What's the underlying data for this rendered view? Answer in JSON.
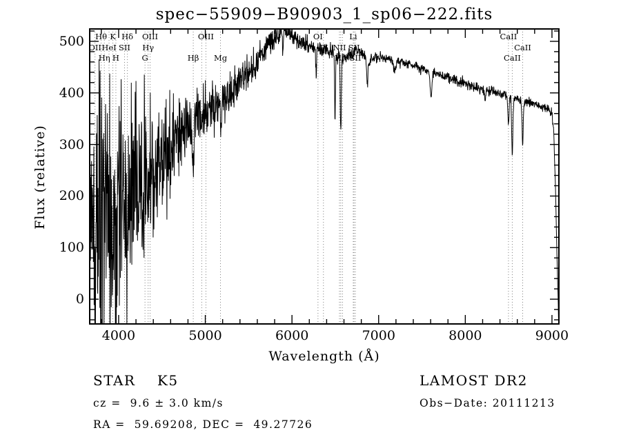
{
  "title": "spec−55909−B90903_1_sp06−222.fits",
  "annotations": {
    "object_class": "STAR    K5",
    "survey": "LAMOST DR2",
    "cz": "cz =  9.6 ± 3.0 km/s",
    "obs_date": "Obs−Date: 20111213",
    "ra_dec": "RA =  59.69208, DEC =  49.27726"
  },
  "chart_data": {
    "type": "line",
    "title": "spec−55909−B90903_1_sp06−222.fits",
    "xlabel": "Wavelength (Å)",
    "ylabel": "Flux (relative)",
    "xlim": [
      3666,
      9080
    ],
    "ylim": [
      -48,
      524
    ],
    "x_ticks": [
      4000,
      5000,
      6000,
      7000,
      8000,
      9000
    ],
    "y_ticks": [
      0,
      100,
      200,
      300,
      400,
      500
    ],
    "x_minor_step": 200,
    "y_minor_step": 20,
    "grid": false,
    "legend": "none",
    "colors": {
      "trace": "#000000",
      "frame": "#000000",
      "line_markers": "#7f7f7f",
      "background": "#ffffff"
    },
    "spectral_lines": [
      {
        "label": "OII",
        "wavelength": 3727,
        "row": 1
      },
      {
        "label": "Hθ",
        "wavelength": 3798,
        "row": 0
      },
      {
        "label": "Hη",
        "wavelength": 3835,
        "row": 2
      },
      {
        "label": "HeI",
        "wavelength": 3889,
        "row": 1
      },
      {
        "label": "K",
        "wavelength": 3933,
        "row": 0
      },
      {
        "label": "H",
        "wavelength": 3968,
        "row": 2
      },
      {
        "label": "SII",
        "wavelength": 4068,
        "row": 1
      },
      {
        "label": "Hδ",
        "wavelength": 4101,
        "row": 0
      },
      {
        "label": "G",
        "wavelength": 4304,
        "row": 2
      },
      {
        "label": "Hγ",
        "wavelength": 4340,
        "row": 1
      },
      {
        "label": "OIII",
        "wavelength": 4363,
        "row": 0
      },
      {
        "label": "Hβ",
        "wavelength": 4861,
        "row": 2
      },
      {
        "label": "",
        "wavelength": 4959,
        "row": null
      },
      {
        "label": "OIII",
        "wavelength": 5007,
        "row": 0
      },
      {
        "label": "Mg",
        "wavelength": 5175,
        "row": 2
      },
      {
        "label": "OI",
        "wavelength": 6300,
        "row": 0
      },
      {
        "label": "OI",
        "wavelength": 6363,
        "row": 1
      },
      {
        "label": "NII",
        "wavelength": 6548,
        "row": 1
      },
      {
        "label": "Hα",
        "wavelength": 6563,
        "row": 2
      },
      {
        "label": "",
        "wavelength": 6583,
        "row": null
      },
      {
        "label": "Li",
        "wavelength": 6707,
        "row": 0
      },
      {
        "label": "SII",
        "wavelength": 6716,
        "row": 1
      },
      {
        "label": "SII",
        "wavelength": 6731,
        "row": 2
      },
      {
        "label": "CaII",
        "wavelength": 8498,
        "row": 0
      },
      {
        "label": "CaII",
        "wavelength": 8542,
        "row": 2
      },
      {
        "label": "CaII",
        "wavelength": 8662,
        "row": 1
      }
    ],
    "series": [
      {
        "name": "spectrum",
        "continuum_points_wl_flux": [
          [
            3666,
            140
          ],
          [
            3700,
            152
          ],
          [
            3750,
            160
          ],
          [
            3800,
            166
          ],
          [
            3850,
            172
          ],
          [
            3900,
            180
          ],
          [
            3950,
            190
          ],
          [
            4000,
            200
          ],
          [
            4100,
            208
          ],
          [
            4200,
            220
          ],
          [
            4300,
            236
          ],
          [
            4400,
            254
          ],
          [
            4500,
            270
          ],
          [
            4600,
            294
          ],
          [
            4700,
            314
          ],
          [
            4800,
            330
          ],
          [
            4900,
            344
          ],
          [
            5000,
            360
          ],
          [
            5100,
            372
          ],
          [
            5200,
            388
          ],
          [
            5300,
            403
          ],
          [
            5400,
            420
          ],
          [
            5500,
            440
          ],
          [
            5600,
            462
          ],
          [
            5700,
            487
          ],
          [
            5800,
            507
          ],
          [
            5850,
            514
          ],
          [
            5900,
            518
          ],
          [
            5950,
            517
          ],
          [
            6000,
            512
          ],
          [
            6050,
            505
          ],
          [
            6100,
            499
          ],
          [
            6150,
            494
          ],
          [
            6200,
            490
          ],
          [
            6250,
            487
          ],
          [
            6300,
            484
          ],
          [
            6350,
            482
          ],
          [
            6400,
            483
          ],
          [
            6450,
            481
          ],
          [
            6500,
            478
          ],
          [
            6550,
            473
          ],
          [
            6600,
            470
          ],
          [
            6650,
            474
          ],
          [
            6700,
            479
          ],
          [
            6750,
            480
          ],
          [
            6800,
            477
          ],
          [
            6850,
            470
          ],
          [
            6900,
            464
          ],
          [
            6950,
            468
          ],
          [
            7000,
            470
          ],
          [
            7100,
            467
          ],
          [
            7200,
            462
          ],
          [
            7300,
            457
          ],
          [
            7400,
            452
          ],
          [
            7500,
            447
          ],
          [
            7600,
            439
          ],
          [
            7700,
            434
          ],
          [
            7800,
            429
          ],
          [
            7900,
            423
          ],
          [
            8000,
            417
          ],
          [
            8100,
            412
          ],
          [
            8200,
            408
          ],
          [
            8300,
            403
          ],
          [
            8400,
            399
          ],
          [
            8500,
            393
          ],
          [
            8600,
            389
          ],
          [
            8700,
            383
          ],
          [
            8800,
            378
          ],
          [
            8900,
            373
          ],
          [
            8950,
            369
          ],
          [
            9000,
            359
          ],
          [
            9020,
            322
          ],
          [
            9040,
            215
          ],
          [
            9060,
            70
          ],
          [
            9075,
            -30
          ],
          [
            9080,
            -46
          ]
        ],
        "noise_sigma_points_wl_sigma": [
          [
            3666,
            165
          ],
          [
            3720,
            155
          ],
          [
            3780,
            140
          ],
          [
            3840,
            128
          ],
          [
            3900,
            115
          ],
          [
            3960,
            105
          ],
          [
            4020,
            95
          ],
          [
            4100,
            85
          ],
          [
            4200,
            74
          ],
          [
            4300,
            65
          ],
          [
            4400,
            57
          ],
          [
            4500,
            50
          ],
          [
            4650,
            42
          ],
          [
            4800,
            35
          ],
          [
            4950,
            30
          ],
          [
            5100,
            25
          ],
          [
            5250,
            20
          ],
          [
            5400,
            17
          ],
          [
            5550,
            14
          ],
          [
            5700,
            12
          ],
          [
            5850,
            11
          ],
          [
            6000,
            10
          ],
          [
            6200,
            9
          ],
          [
            6400,
            8
          ],
          [
            6600,
            7
          ],
          [
            6900,
            6
          ],
          [
            7300,
            5
          ],
          [
            7800,
            5
          ],
          [
            8300,
            5
          ],
          [
            8800,
            4
          ],
          [
            9080,
            4
          ]
        ],
        "absorption_features_wl_depth_width": [
          [
            3933,
            70,
            7
          ],
          [
            3968,
            70,
            7
          ],
          [
            4101,
            55,
            7
          ],
          [
            4340,
            55,
            7
          ],
          [
            4861,
            75,
            8
          ],
          [
            5175,
            35,
            10
          ],
          [
            5893,
            25,
            7
          ],
          [
            6280,
            55,
            5
          ],
          [
            6497,
            130,
            5
          ],
          [
            6563,
            150,
            6
          ],
          [
            6870,
            45,
            9
          ],
          [
            7186,
            25,
            12
          ],
          [
            7605,
            42,
            10
          ],
          [
            8227,
            22,
            8
          ],
          [
            8498,
            58,
            6
          ],
          [
            8542,
            108,
            7
          ],
          [
            8662,
            88,
            7
          ]
        ]
      }
    ]
  }
}
